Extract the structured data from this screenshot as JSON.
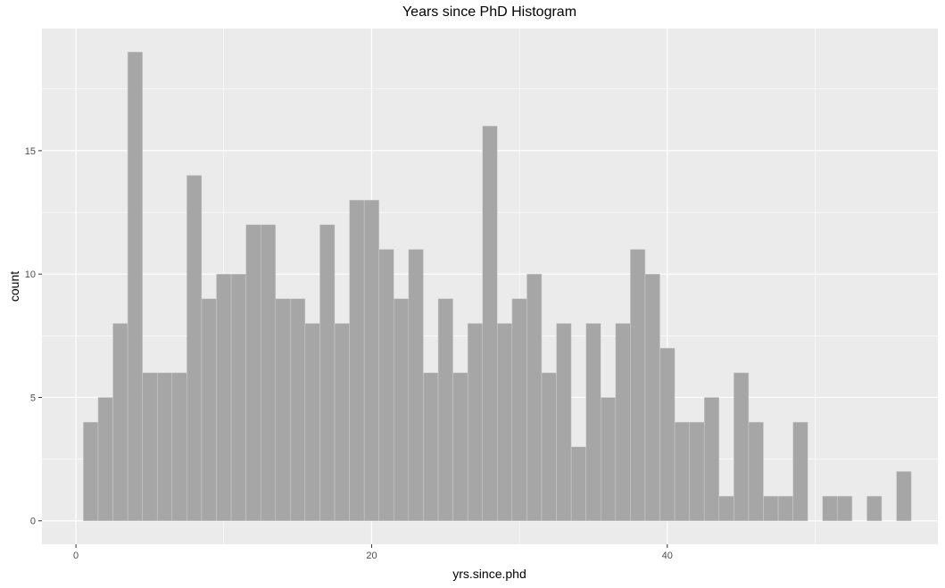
{
  "chart_data": {
    "type": "bar",
    "title": "Years since PhD Histogram",
    "xlabel": "yrs.since.phd",
    "ylabel": "count",
    "x_ticks": [
      0,
      20,
      40
    ],
    "y_ticks": [
      0,
      5,
      10,
      15
    ],
    "xlim": [
      -2.3,
      58.3
    ],
    "ylim": [
      -0.95,
      19.95
    ],
    "bin_width": 1,
    "first_bin_center": 1,
    "values": [
      4,
      5,
      8,
      19,
      6,
      6,
      6,
      14,
      9,
      10,
      10,
      12,
      12,
      9,
      9,
      8,
      12,
      8,
      13,
      13,
      11,
      9,
      11,
      6,
      9,
      6,
      8,
      16,
      8,
      9,
      10,
      6,
      8,
      3,
      8,
      5,
      8,
      11,
      10,
      7,
      4,
      4,
      5,
      1,
      6,
      4,
      1,
      1,
      4,
      0,
      1,
      1,
      0,
      1,
      0,
      2
    ],
    "grid": true,
    "bar_color": "#a6a6a6",
    "panel_color": "#ebebeb"
  }
}
